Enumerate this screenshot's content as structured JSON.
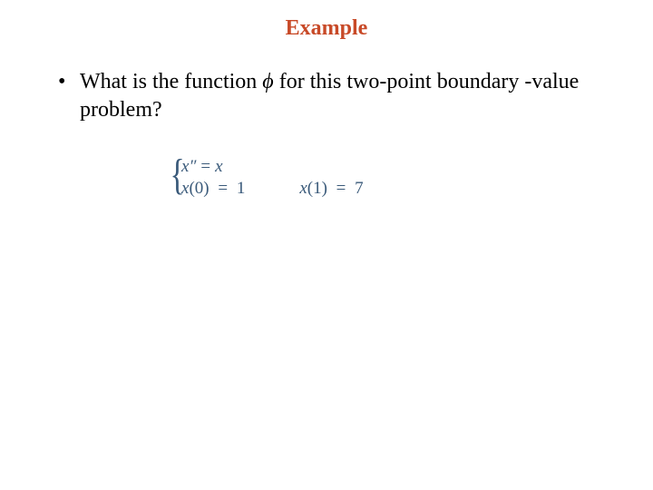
{
  "title": {
    "text": "Example",
    "color": "#c84a28",
    "font_size": 24,
    "font_weight": "bold"
  },
  "bullet": {
    "prefix": "What is the function ",
    "phi": "ϕ",
    "suffix": " for this two-point boundary -value problem?"
  },
  "equations": {
    "color": "#3a5a7a",
    "row1": {
      "lhs_var": "x",
      "lhs_primes": "″",
      "eq": "=",
      "rhs": "x"
    },
    "row2": {
      "c1_var": "x",
      "c1_arg_open": "(",
      "c1_arg": "0",
      "c1_arg_close": ")",
      "c1_eq": "=",
      "c1_val": "1",
      "c2_var": "x",
      "c2_arg_open": "(",
      "c2_arg": "1",
      "c2_arg_close": ")",
      "c2_eq": "=",
      "c2_val": "7"
    },
    "brace": "{"
  },
  "colors": {
    "background": "#ffffff",
    "text": "#000000"
  }
}
